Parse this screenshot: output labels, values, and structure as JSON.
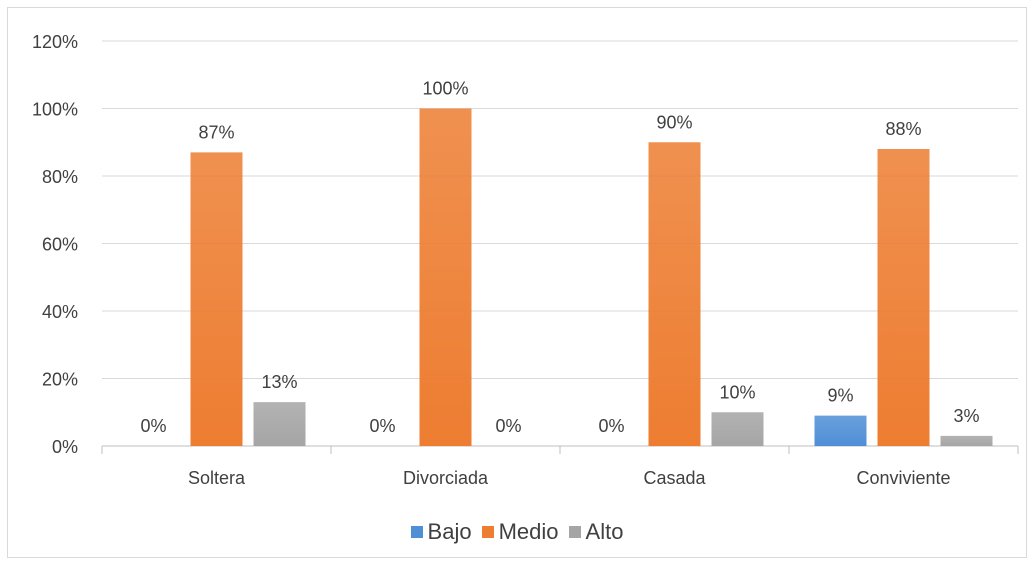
{
  "chart_data": {
    "type": "bar",
    "categories": [
      "Soltera",
      "Divorciada",
      "Casada",
      "Conviviente"
    ],
    "series": [
      {
        "name": "Bajo",
        "values": [
          0,
          0,
          0,
          9
        ],
        "labels": [
          "0%",
          "0%",
          "0%",
          "9%"
        ],
        "color": "#4f8fd6"
      },
      {
        "name": "Medio",
        "values": [
          87,
          100,
          90,
          88
        ],
        "labels": [
          "87%",
          "100%",
          "90%",
          "88%"
        ],
        "color": "#ed7d31"
      },
      {
        "name": "Alto",
        "values": [
          13,
          0,
          10,
          3
        ],
        "labels": [
          "13%",
          "0%",
          "10%",
          "3%"
        ],
        "color": "#a5a5a5"
      }
    ],
    "ylim": [
      0,
      120
    ],
    "yticks": [
      0,
      20,
      40,
      60,
      80,
      100,
      120
    ],
    "ytick_labels": [
      "0%",
      "20%",
      "40%",
      "60%",
      "80%",
      "100%",
      "120%"
    ],
    "grid": true,
    "legend_position": "bottom",
    "title": "",
    "xlabel": "",
    "ylabel": ""
  }
}
